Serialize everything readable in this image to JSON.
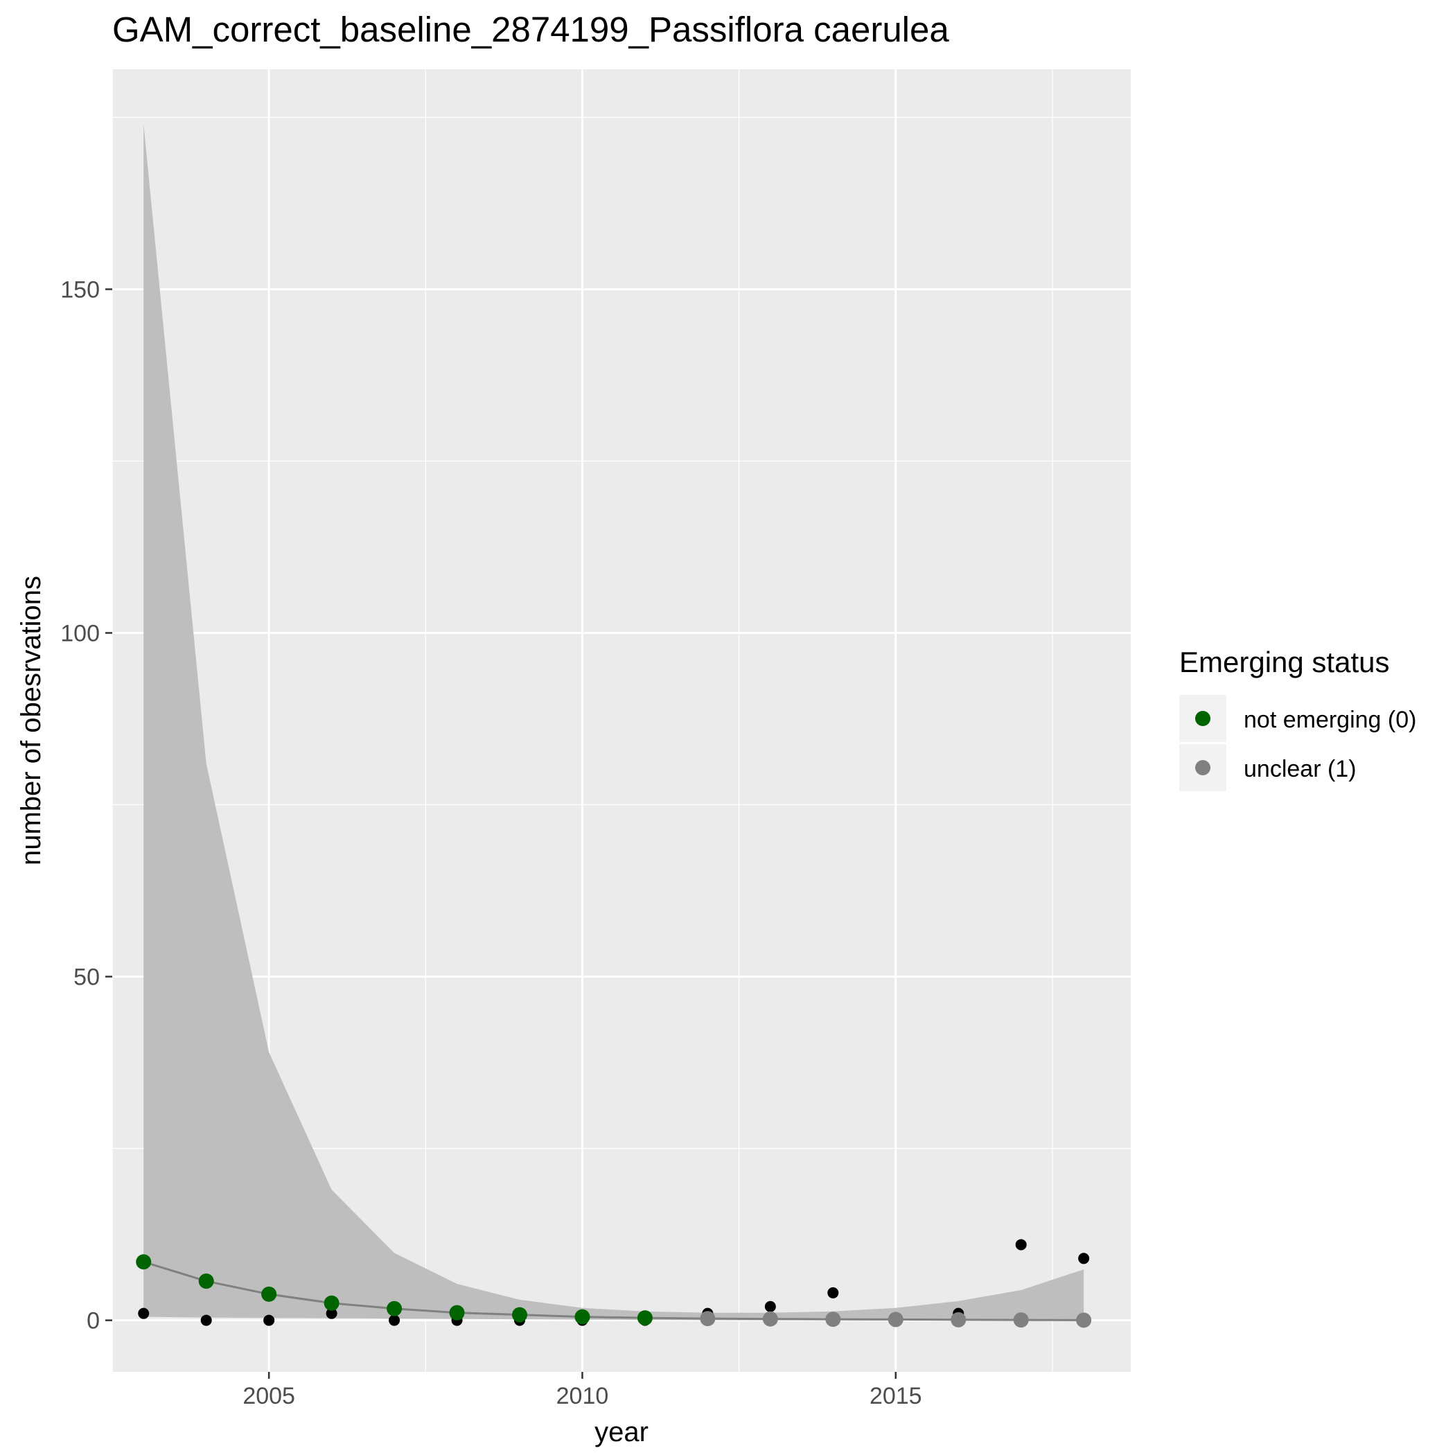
{
  "chart_data": {
    "type": "scatter",
    "title": "GAM_correct_baseline_2874199_Passiflora caerulea",
    "xlabel": "year",
    "ylabel": "number of obesrvations",
    "xlim": [
      2002.5,
      2018.75
    ],
    "ylim": [
      -7.5,
      182
    ],
    "x_ticks": [
      2005,
      2010,
      2015
    ],
    "x_tick_labels": [
      "2005",
      "2010",
      "2015"
    ],
    "y_ticks": [
      0,
      50,
      100,
      150
    ],
    "y_tick_labels": [
      "0",
      "50",
      "100",
      "150"
    ],
    "y_minor_ticks": [
      25,
      75,
      125,
      175
    ],
    "x_minor_ticks": [
      2002.5,
      2007.5,
      2012.5,
      2017.5
    ],
    "grid": true,
    "legend": {
      "title": "Emerging status",
      "placement": "right",
      "entries": [
        {
          "label": "not emerging (0)",
          "color": "#006400"
        },
        {
          "label": "unclear (1)",
          "color": "#808080"
        }
      ]
    },
    "observed": {
      "color": "#000000",
      "points": [
        {
          "x": 2003,
          "y": 1
        },
        {
          "x": 2004,
          "y": 0
        },
        {
          "x": 2005,
          "y": 0
        },
        {
          "x": 2006,
          "y": 1
        },
        {
          "x": 2007,
          "y": 0
        },
        {
          "x": 2008,
          "y": 0
        },
        {
          "x": 2009,
          "y": 0
        },
        {
          "x": 2010,
          "y": 0
        },
        {
          "x": 2011,
          "y": 0
        },
        {
          "x": 2012,
          "y": 1
        },
        {
          "x": 2013,
          "y": 2
        },
        {
          "x": 2014,
          "y": 4
        },
        {
          "x": 2015,
          "y": 0
        },
        {
          "x": 2016,
          "y": 1
        },
        {
          "x": 2017,
          "y": 11
        },
        {
          "x": 2018,
          "y": 9
        }
      ]
    },
    "fitted": {
      "line_color": "#808080",
      "points": [
        {
          "x": 2003,
          "y": 8.5,
          "status": "not emerging (0)"
        },
        {
          "x": 2004,
          "y": 5.7,
          "status": "not emerging (0)"
        },
        {
          "x": 2005,
          "y": 3.8,
          "status": "not emerging (0)"
        },
        {
          "x": 2006,
          "y": 2.5,
          "status": "not emerging (0)"
        },
        {
          "x": 2007,
          "y": 1.7,
          "status": "not emerging (0)"
        },
        {
          "x": 2008,
          "y": 1.1,
          "status": "not emerging (0)"
        },
        {
          "x": 2009,
          "y": 0.8,
          "status": "not emerging (0)"
        },
        {
          "x": 2010,
          "y": 0.5,
          "status": "not emerging (0)"
        },
        {
          "x": 2011,
          "y": 0.35,
          "status": "not emerging (0)"
        },
        {
          "x": 2012,
          "y": 0.25,
          "status": "unclear (1)"
        },
        {
          "x": 2013,
          "y": 0.2,
          "status": "unclear (1)"
        },
        {
          "x": 2014,
          "y": 0.15,
          "status": "unclear (1)"
        },
        {
          "x": 2015,
          "y": 0.12,
          "status": "unclear (1)"
        },
        {
          "x": 2016,
          "y": 0.08,
          "status": "unclear (1)"
        },
        {
          "x": 2017,
          "y": 0.05,
          "status": "unclear (1)"
        },
        {
          "x": 2018,
          "y": 0.02,
          "status": "unclear (1)"
        }
      ]
    },
    "confidence_band": {
      "color": "#bebebe",
      "points": [
        {
          "x": 2003,
          "lower": 0.5,
          "upper": 174
        },
        {
          "x": 2004,
          "lower": 0.4,
          "upper": 81
        },
        {
          "x": 2005,
          "lower": 0.35,
          "upper": 39
        },
        {
          "x": 2006,
          "lower": 0.3,
          "upper": 19
        },
        {
          "x": 2007,
          "lower": 0.25,
          "upper": 9.8
        },
        {
          "x": 2008,
          "lower": 0.2,
          "upper": 5.3
        },
        {
          "x": 2009,
          "lower": 0.15,
          "upper": 3
        },
        {
          "x": 2010,
          "lower": 0.1,
          "upper": 1.8
        },
        {
          "x": 2011,
          "lower": 0.05,
          "upper": 1.3
        },
        {
          "x": 2012,
          "lower": 0.02,
          "upper": 1.1
        },
        {
          "x": 2013,
          "lower": 0.0,
          "upper": 1.1
        },
        {
          "x": 2014,
          "lower": 0.0,
          "upper": 1.3
        },
        {
          "x": 2015,
          "lower": 0.0,
          "upper": 1.8
        },
        {
          "x": 2016,
          "lower": 0.0,
          "upper": 2.8
        },
        {
          "x": 2017,
          "lower": 0.0,
          "upper": 4.4
        },
        {
          "x": 2018,
          "lower": 0.0,
          "upper": 7.4
        }
      ]
    }
  },
  "colors": {
    "panel_background": "#ebebeb",
    "grid_major": "#ffffff",
    "axis_text": "#4d4d4d"
  }
}
